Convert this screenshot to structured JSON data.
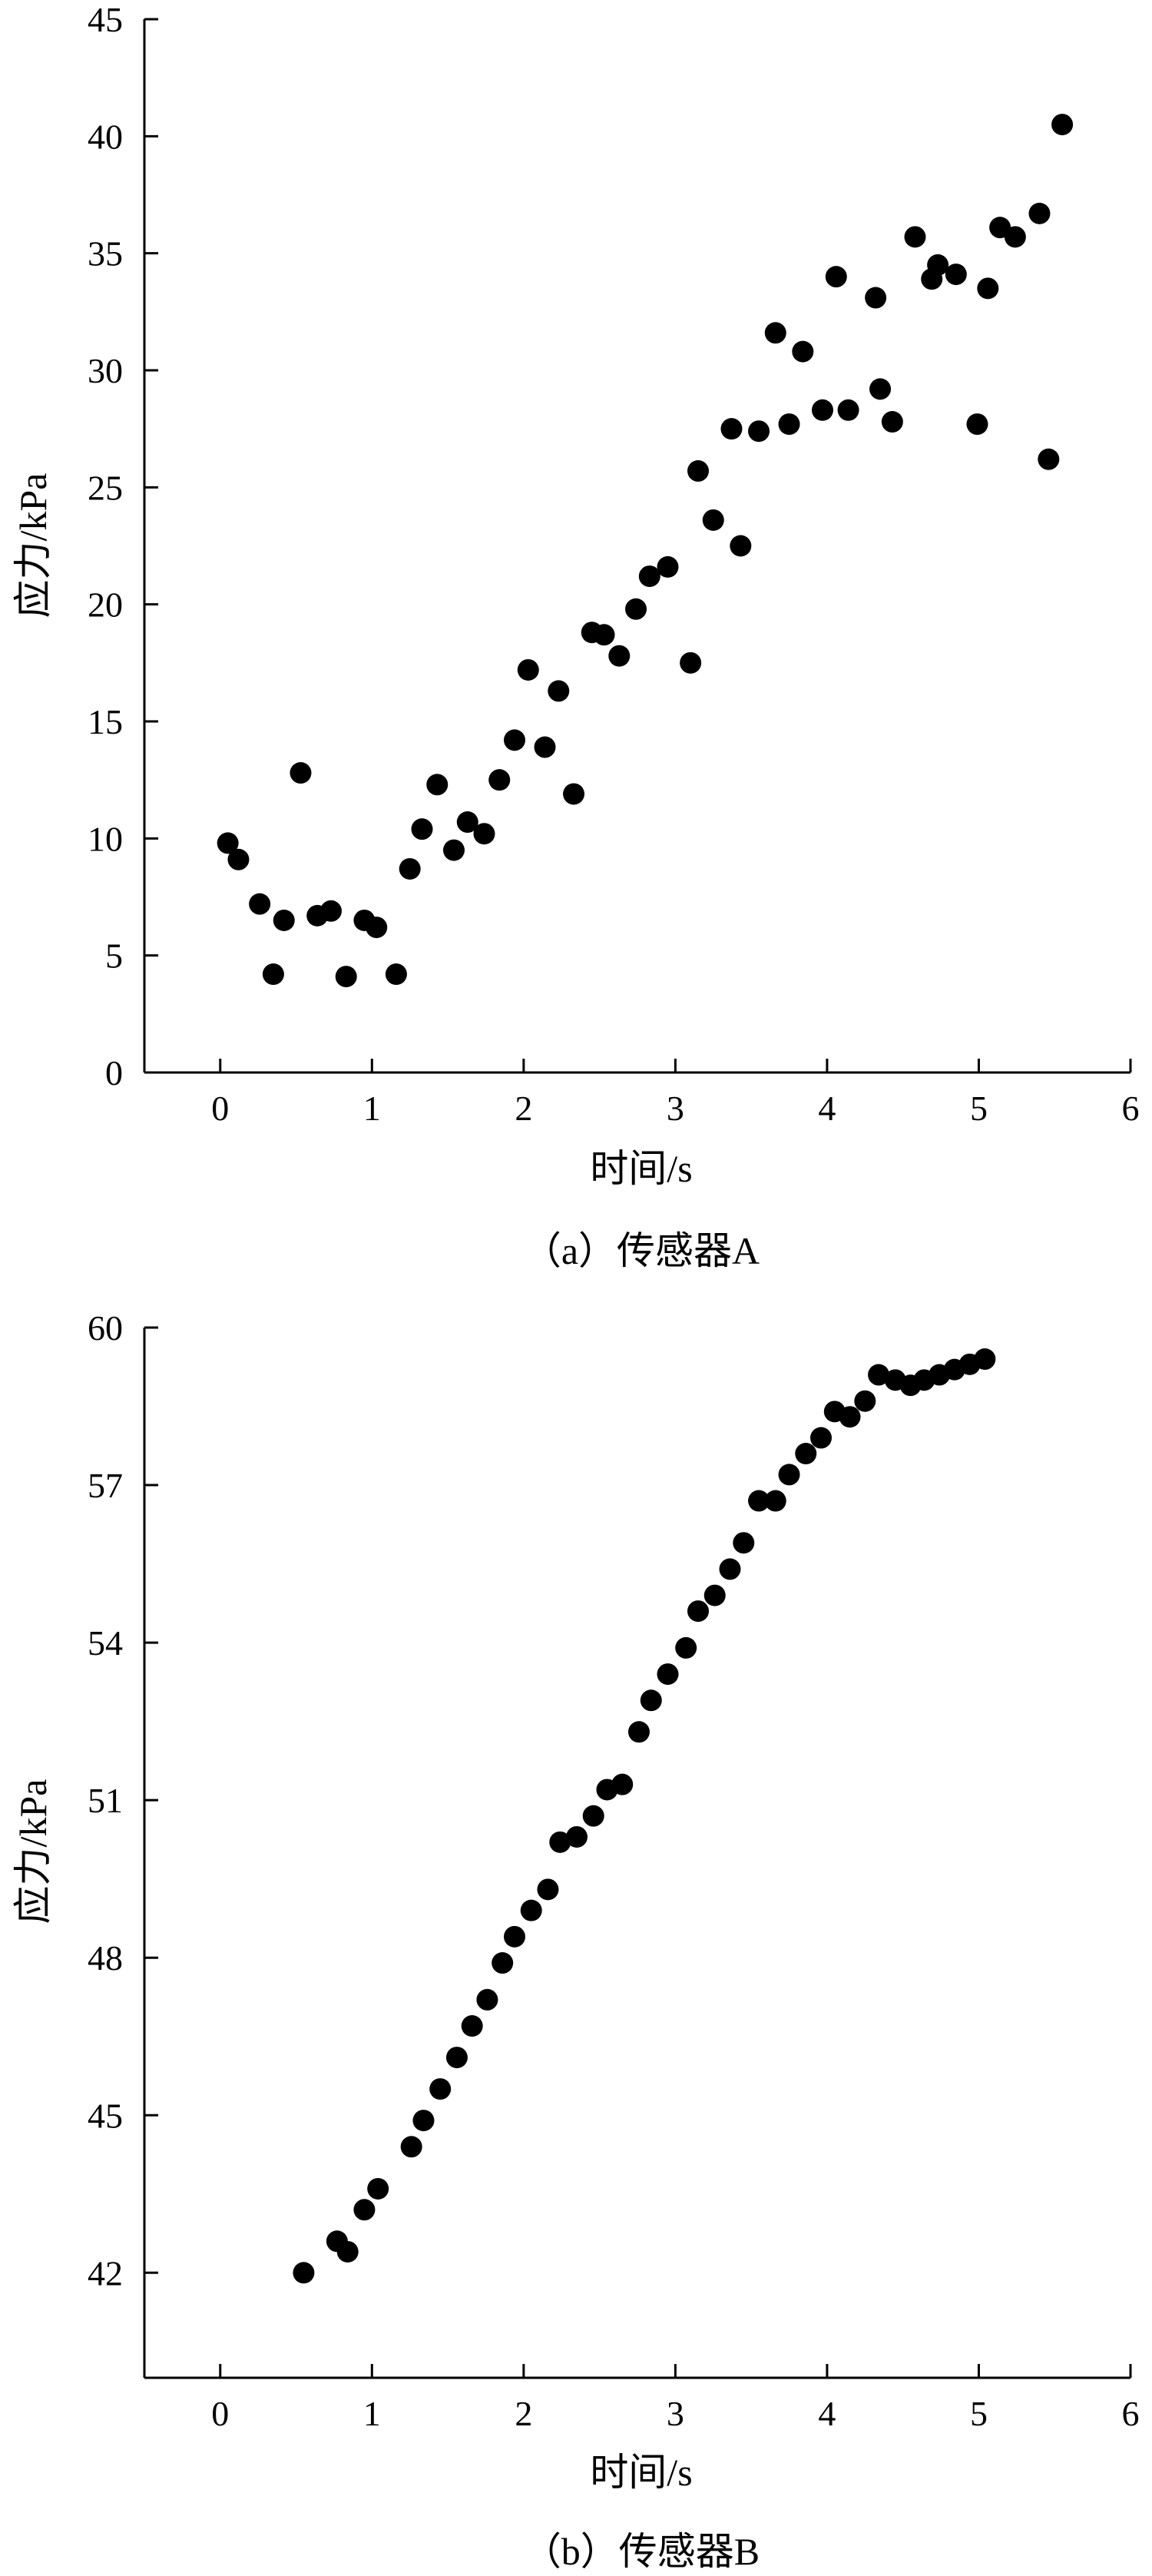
{
  "chart_data": [
    {
      "type": "scatter",
      "caption": "（a）传感器A",
      "xlabel": "时间/s",
      "ylabel": "应力/kPa",
      "xlim": [
        -0.5,
        6
      ],
      "ylim": [
        0,
        45
      ],
      "xticks": [
        0,
        1,
        2,
        3,
        4,
        5,
        6
      ],
      "yticks": [
        0,
        5,
        10,
        15,
        20,
        25,
        30,
        35,
        40,
        45
      ],
      "grid": false,
      "legend": "none",
      "marker_color": "#000000",
      "series": [
        {
          "x": [
            0.05,
            0.12,
            0.26,
            0.35,
            0.42,
            0.53,
            0.64,
            0.73,
            0.83,
            0.95,
            1.03,
            1.16,
            1.25,
            1.33,
            1.43,
            1.54,
            1.63,
            1.74,
            1.84,
            1.94,
            2.03,
            2.14,
            2.23,
            2.33,
            2.45,
            2.53,
            2.63,
            2.74,
            2.83,
            2.95,
            3.1,
            3.15,
            3.25,
            3.37,
            3.43,
            3.55,
            3.66,
            3.75,
            3.84,
            3.97,
            4.06,
            4.14,
            4.32,
            4.35,
            4.43,
            4.58,
            4.69,
            4.73,
            4.85,
            4.99,
            5.06,
            5.14,
            5.24,
            5.4,
            5.46,
            5.55
          ],
          "y": [
            9.8,
            9.1,
            7.2,
            4.2,
            6.5,
            12.8,
            6.7,
            6.9,
            4.1,
            6.5,
            6.2,
            4.2,
            8.7,
            10.4,
            12.3,
            9.5,
            10.7,
            10.2,
            12.5,
            14.2,
            17.2,
            13.9,
            16.3,
            11.9,
            18.8,
            18.7,
            17.8,
            19.8,
            21.2,
            21.6,
            17.5,
            25.7,
            23.6,
            27.5,
            22.5,
            27.4,
            31.6,
            27.7,
            30.8,
            28.3,
            34.0,
            28.3,
            33.1,
            29.2,
            27.8,
            35.7,
            33.9,
            34.5,
            34.1,
            27.7,
            33.5,
            36.1,
            35.7,
            36.7,
            26.2,
            40.5
          ]
        }
      ]
    },
    {
      "type": "scatter",
      "caption": "（b）传感器B",
      "xlabel": "时间/s",
      "ylabel": "应力/kPa",
      "xlim": [
        -0.5,
        6
      ],
      "ylim": [
        40,
        60
      ],
      "xticks": [
        0,
        1,
        2,
        3,
        4,
        5,
        6
      ],
      "yticks": [
        42,
        45,
        48,
        51,
        54,
        57,
        60
      ],
      "grid": false,
      "legend": "none",
      "marker_color": "#000000",
      "series": [
        {
          "x": [
            0.55,
            0.77,
            0.84,
            0.95,
            1.04,
            1.26,
            1.34,
            1.45,
            1.56,
            1.66,
            1.76,
            1.86,
            1.94,
            2.05,
            2.16,
            2.24,
            2.35,
            2.46,
            2.55,
            2.65,
            2.76,
            2.84,
            2.95,
            3.07,
            3.15,
            3.26,
            3.36,
            3.45,
            3.55,
            3.66,
            3.75,
            3.86,
            3.96,
            4.05,
            4.15,
            4.25,
            4.34,
            4.45,
            4.55,
            4.64,
            4.74,
            4.84,
            4.94,
            5.04
          ],
          "y": [
            42.0,
            42.6,
            42.4,
            43.2,
            43.6,
            44.4,
            44.9,
            45.5,
            46.1,
            46.7,
            47.2,
            47.9,
            48.4,
            48.9,
            49.3,
            50.2,
            50.3,
            50.7,
            51.2,
            51.3,
            52.3,
            52.9,
            53.4,
            53.9,
            54.6,
            54.9,
            55.4,
            55.9,
            56.7,
            56.7,
            57.2,
            57.6,
            57.9,
            58.4,
            58.3,
            58.6,
            59.1,
            59.0,
            58.9,
            59.0,
            59.1,
            59.2,
            59.3,
            59.4
          ]
        }
      ]
    }
  ]
}
